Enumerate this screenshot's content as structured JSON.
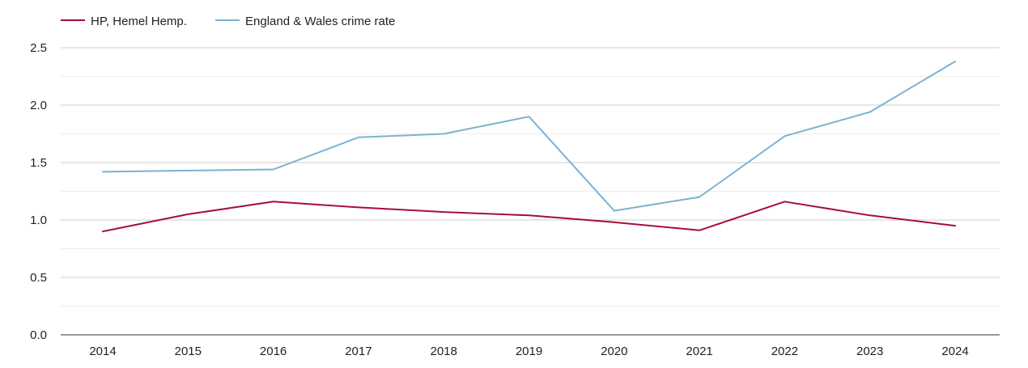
{
  "chart_data": {
    "type": "line",
    "title": "",
    "xlabel": "",
    "ylabel": "",
    "x": [
      "2014",
      "2015",
      "2016",
      "2017",
      "2018",
      "2019",
      "2020",
      "2021",
      "2022",
      "2023",
      "2024"
    ],
    "ylim": [
      0,
      2.5
    ],
    "yticks": [
      "0.0",
      "0.5",
      "1.0",
      "1.5",
      "2.0",
      "2.5"
    ],
    "grid": true,
    "legend_position": "top-left",
    "series": [
      {
        "name": "HP, Hemel Hemp.",
        "color": "#a50f35",
        "values": [
          0.9,
          1.05,
          1.16,
          1.11,
          1.07,
          1.04,
          0.98,
          0.91,
          1.16,
          1.04,
          0.95
        ]
      },
      {
        "name": "England & Wales crime rate",
        "color": "#7bb3d1",
        "values": [
          1.42,
          1.43,
          1.44,
          1.72,
          1.75,
          1.9,
          1.08,
          1.2,
          1.73,
          1.94,
          2.38
        ]
      }
    ]
  }
}
